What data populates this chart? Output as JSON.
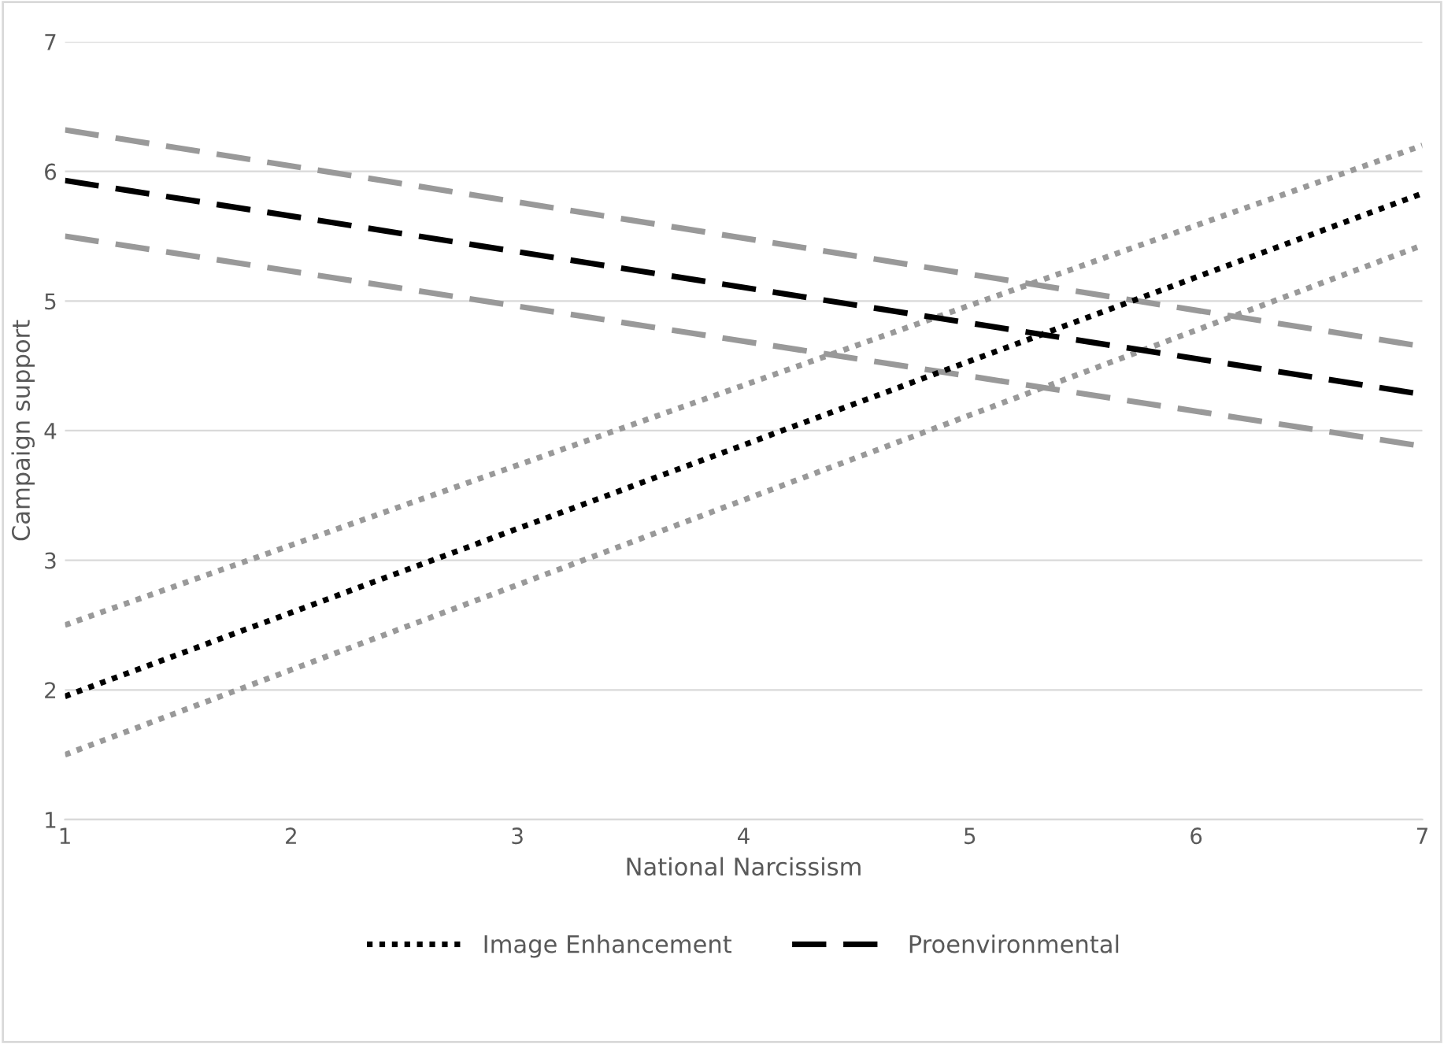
{
  "chart_data": {
    "type": "line",
    "xlabel": "National Narcissism",
    "ylabel": "Campaign support",
    "xlim": [
      1,
      7
    ],
    "ylim": [
      1,
      7
    ],
    "xticks": [
      1,
      2,
      3,
      4,
      5,
      6,
      7
    ],
    "yticks": [
      1,
      2,
      3,
      4,
      5,
      6,
      7
    ],
    "grid": "y",
    "legend": "bottom",
    "x": [
      1,
      7
    ],
    "series": [
      {
        "color": "#999999",
        "line_style": "dotted",
        "values": [
          2.5,
          6.2
        ]
      },
      {
        "color": "#999999",
        "line_style": "dotted",
        "values": [
          1.5,
          5.43
        ]
      },
      {
        "color": "#999999",
        "line_style": "dashed",
        "values": [
          6.32,
          4.65
        ]
      },
      {
        "color": "#999999",
        "line_style": "dashed",
        "values": [
          5.5,
          3.88
        ]
      },
      {
        "name": "Image Enhancement",
        "color": "#000000",
        "line_style": "dotted",
        "values": [
          1.95,
          5.83
        ]
      },
      {
        "name": "Proenvironmental",
        "color": "#000000",
        "line_style": "dashed",
        "values": [
          5.93,
          4.28
        ]
      }
    ]
  }
}
